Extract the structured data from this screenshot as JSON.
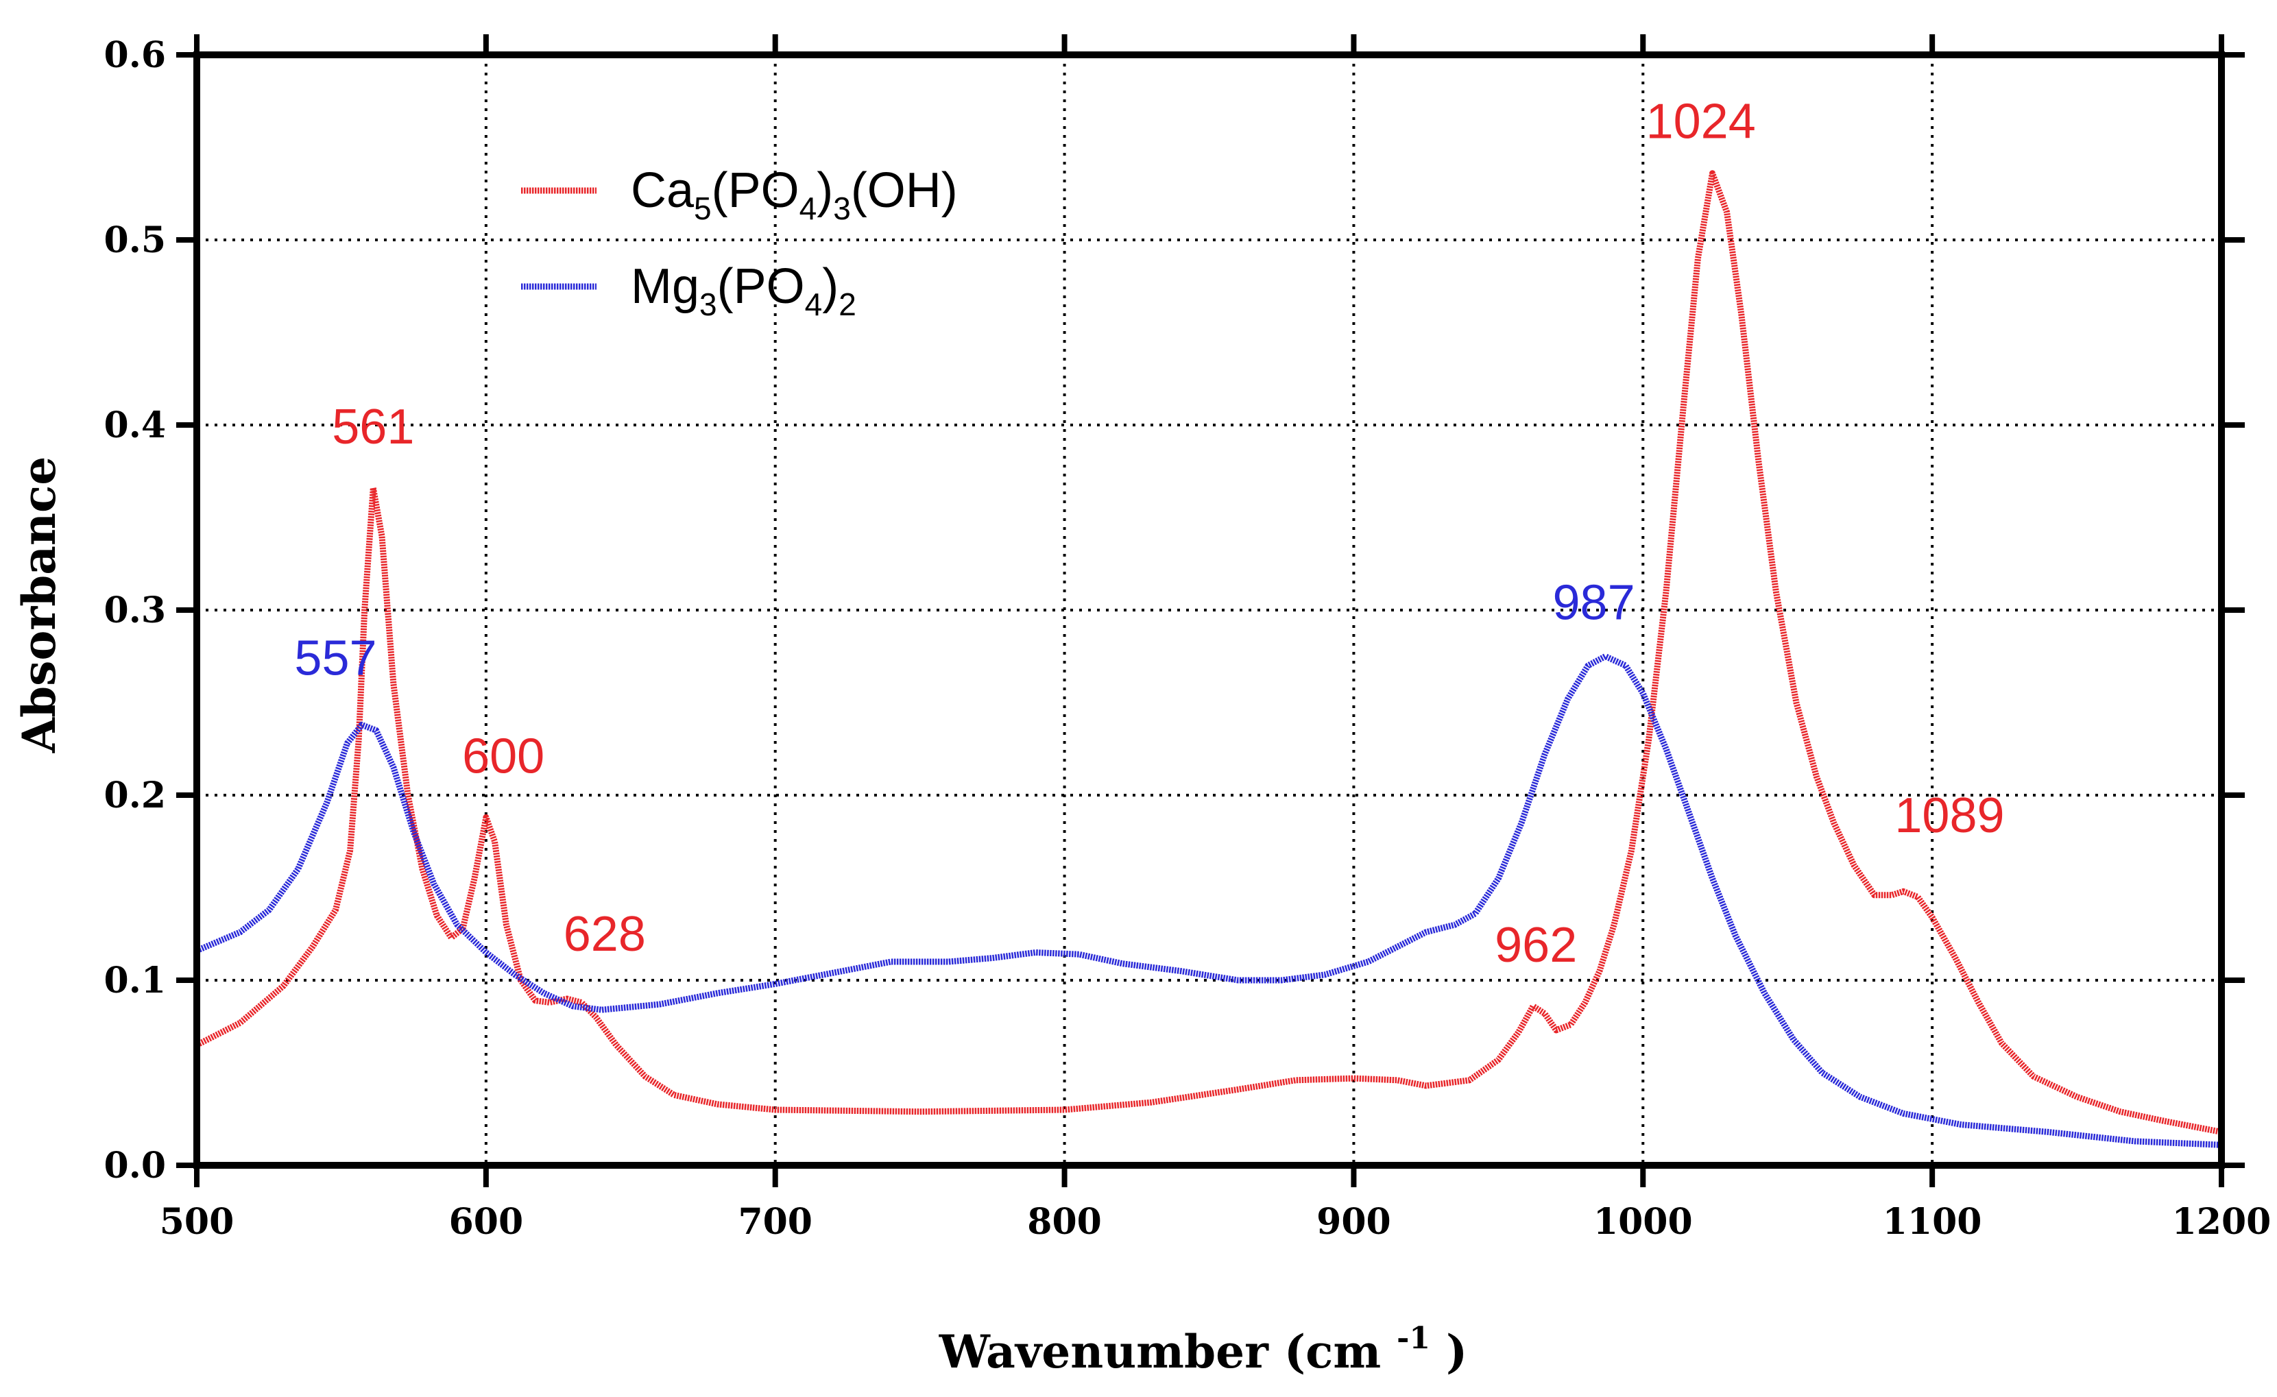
{
  "chart_data": {
    "type": "line",
    "title": "",
    "xlabel": "Wavenumber",
    "xlabel_unit_base": "(cm",
    "xlabel_unit_exp": "-1",
    "xlabel_unit_close": ")",
    "ylabel": "Absorbance",
    "xlim": [
      500,
      1200
    ],
    "ylim": [
      0.0,
      0.6
    ],
    "xticks": [
      "500",
      "600",
      "700",
      "800",
      "900",
      "1000",
      "1100",
      "1200"
    ],
    "yticks": [
      "0.0",
      "0.1",
      "0.2",
      "0.3",
      "0.4",
      "0.5",
      "0.6"
    ],
    "grid": true,
    "legend_position": "top-left",
    "series": [
      {
        "name": "Ca5(PO4)3(OH)",
        "legend": [
          {
            "t": "Ca",
            "sub": false
          },
          {
            "t": "5",
            "sub": true
          },
          {
            "t": "(PO",
            "sub": false
          },
          {
            "t": "4",
            "sub": true
          },
          {
            "t": ")",
            "sub": false
          },
          {
            "t": "3",
            "sub": true
          },
          {
            "t": "(OH)",
            "sub": false
          }
        ],
        "color": "#e8262a",
        "points": [
          [
            500,
            0.065
          ],
          [
            515,
            0.077
          ],
          [
            530,
            0.097
          ],
          [
            540,
            0.118
          ],
          [
            548,
            0.138
          ],
          [
            553,
            0.17
          ],
          [
            556,
            0.23
          ],
          [
            558,
            0.3
          ],
          [
            561,
            0.366
          ],
          [
            564,
            0.34
          ],
          [
            568,
            0.26
          ],
          [
            573,
            0.2
          ],
          [
            578,
            0.16
          ],
          [
            583,
            0.135
          ],
          [
            588,
            0.123
          ],
          [
            592,
            0.128
          ],
          [
            596,
            0.155
          ],
          [
            600,
            0.188
          ],
          [
            603,
            0.175
          ],
          [
            607,
            0.13
          ],
          [
            612,
            0.1
          ],
          [
            617,
            0.089
          ],
          [
            622,
            0.088
          ],
          [
            628,
            0.09
          ],
          [
            633,
            0.088
          ],
          [
            638,
            0.08
          ],
          [
            645,
            0.065
          ],
          [
            655,
            0.048
          ],
          [
            665,
            0.038
          ],
          [
            680,
            0.033
          ],
          [
            700,
            0.03
          ],
          [
            750,
            0.029
          ],
          [
            800,
            0.03
          ],
          [
            830,
            0.034
          ],
          [
            860,
            0.041
          ],
          [
            880,
            0.046
          ],
          [
            900,
            0.047
          ],
          [
            915,
            0.046
          ],
          [
            925,
            0.043
          ],
          [
            940,
            0.046
          ],
          [
            950,
            0.057
          ],
          [
            957,
            0.072
          ],
          [
            962,
            0.086
          ],
          [
            966,
            0.082
          ],
          [
            970,
            0.073
          ],
          [
            975,
            0.076
          ],
          [
            980,
            0.088
          ],
          [
            985,
            0.105
          ],
          [
            990,
            0.13
          ],
          [
            996,
            0.17
          ],
          [
            1002,
            0.23
          ],
          [
            1008,
            0.31
          ],
          [
            1014,
            0.41
          ],
          [
            1019,
            0.49
          ],
          [
            1024,
            0.536
          ],
          [
            1029,
            0.515
          ],
          [
            1034,
            0.46
          ],
          [
            1040,
            0.38
          ],
          [
            1046,
            0.31
          ],
          [
            1053,
            0.25
          ],
          [
            1060,
            0.21
          ],
          [
            1066,
            0.185
          ],
          [
            1073,
            0.162
          ],
          [
            1080,
            0.146
          ],
          [
            1086,
            0.146
          ],
          [
            1090,
            0.148
          ],
          [
            1095,
            0.145
          ],
          [
            1100,
            0.134
          ],
          [
            1108,
            0.112
          ],
          [
            1116,
            0.088
          ],
          [
            1124,
            0.066
          ],
          [
            1135,
            0.048
          ],
          [
            1150,
            0.037
          ],
          [
            1165,
            0.029
          ],
          [
            1180,
            0.024
          ],
          [
            1200,
            0.018
          ]
        ]
      },
      {
        "name": "Mg3(PO4)2",
        "legend": [
          {
            "t": "Mg",
            "sub": false
          },
          {
            "t": "3",
            "sub": true
          },
          {
            "t": "(PO",
            "sub": false
          },
          {
            "t": "4",
            "sub": true
          },
          {
            "t": ")",
            "sub": false
          },
          {
            "t": "2",
            "sub": true
          }
        ],
        "color": "#2a2ad8",
        "points": [
          [
            500,
            0.116
          ],
          [
            515,
            0.126
          ],
          [
            525,
            0.138
          ],
          [
            535,
            0.16
          ],
          [
            545,
            0.196
          ],
          [
            552,
            0.228
          ],
          [
            557,
            0.238
          ],
          [
            562,
            0.235
          ],
          [
            568,
            0.215
          ],
          [
            575,
            0.18
          ],
          [
            582,
            0.152
          ],
          [
            590,
            0.13
          ],
          [
            600,
            0.115
          ],
          [
            610,
            0.103
          ],
          [
            620,
            0.093
          ],
          [
            630,
            0.086
          ],
          [
            640,
            0.084
          ],
          [
            660,
            0.087
          ],
          [
            680,
            0.093
          ],
          [
            700,
            0.098
          ],
          [
            720,
            0.104
          ],
          [
            740,
            0.11
          ],
          [
            760,
            0.11
          ],
          [
            775,
            0.112
          ],
          [
            790,
            0.115
          ],
          [
            805,
            0.114
          ],
          [
            820,
            0.109
          ],
          [
            840,
            0.105
          ],
          [
            860,
            0.1
          ],
          [
            875,
            0.1
          ],
          [
            890,
            0.103
          ],
          [
            905,
            0.11
          ],
          [
            915,
            0.118
          ],
          [
            925,
            0.126
          ],
          [
            935,
            0.13
          ],
          [
            942,
            0.136
          ],
          [
            950,
            0.155
          ],
          [
            958,
            0.185
          ],
          [
            966,
            0.222
          ],
          [
            974,
            0.252
          ],
          [
            981,
            0.27
          ],
          [
            987,
            0.275
          ],
          [
            994,
            0.27
          ],
          [
            1000,
            0.255
          ],
          [
            1008,
            0.225
          ],
          [
            1016,
            0.19
          ],
          [
            1024,
            0.155
          ],
          [
            1032,
            0.124
          ],
          [
            1042,
            0.093
          ],
          [
            1052,
            0.068
          ],
          [
            1062,
            0.05
          ],
          [
            1075,
            0.037
          ],
          [
            1090,
            0.028
          ],
          [
            1110,
            0.022
          ],
          [
            1140,
            0.018
          ],
          [
            1170,
            0.013
          ],
          [
            1200,
            0.011
          ]
        ]
      }
    ],
    "annotations": [
      {
        "text": "561",
        "x": 561,
        "y": 0.39,
        "series": 0
      },
      {
        "text": "557",
        "x": 548,
        "y": 0.265,
        "series": 1
      },
      {
        "text": "600",
        "x": 606,
        "y": 0.212,
        "series": 0
      },
      {
        "text": "628",
        "x": 641,
        "y": 0.116,
        "series": 0
      },
      {
        "text": "987",
        "x": 983,
        "y": 0.295,
        "series": 1
      },
      {
        "text": "1024",
        "x": 1020,
        "y": 0.555,
        "series": 0
      },
      {
        "text": "962",
        "x": 963,
        "y": 0.11,
        "series": 0
      },
      {
        "text": "1089",
        "x": 1106,
        "y": 0.18,
        "series": 0
      }
    ]
  }
}
